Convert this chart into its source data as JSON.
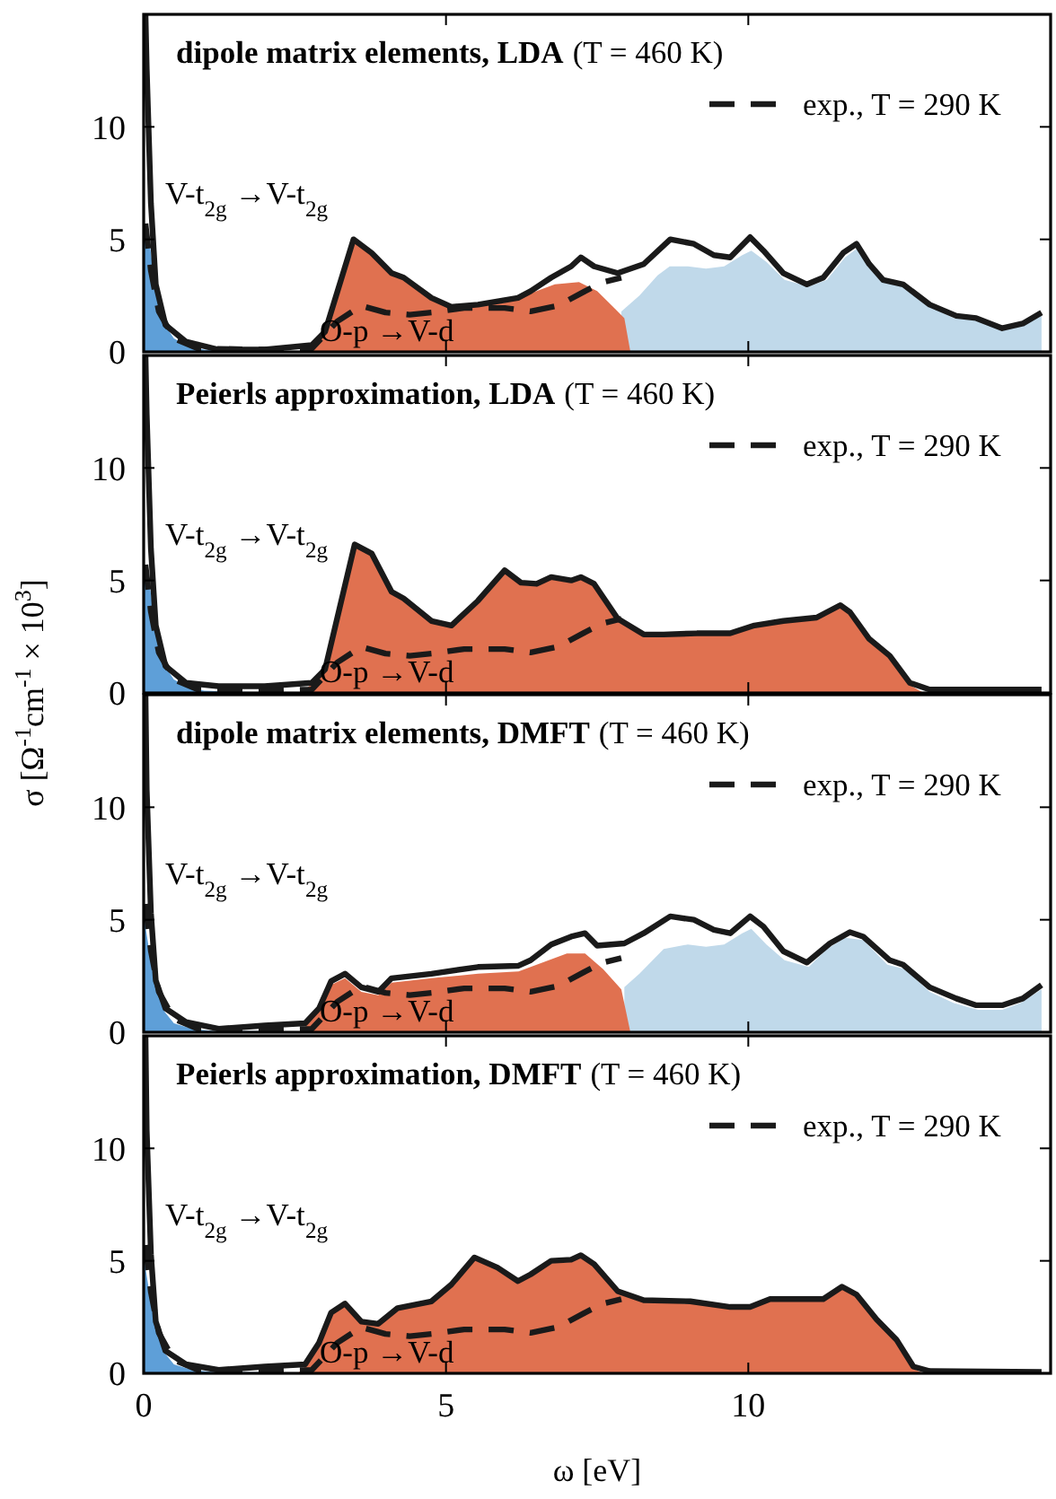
{
  "chart_data": [
    {
      "type": "area",
      "title": "dipole matrix elements, LDA",
      "subtitle": "(T = 460 K)",
      "xlim": [
        0,
        15
      ],
      "ylim": [
        0,
        15
      ],
      "xticks": [
        0,
        5,
        10
      ],
      "yticks": [
        0,
        5,
        10
      ],
      "tick_labels": "y",
      "legend": "top right",
      "grid": false,
      "series": [
        {
          "type": "area",
          "color": "#c0d9ea",
          "x": [
            7.9,
            8.2,
            8.5,
            8.7,
            9.0,
            9.3,
            9.6,
            9.9,
            10.05,
            10.3,
            10.6,
            11.0,
            11.3,
            11.6,
            11.8,
            12.0,
            12.3,
            12.6,
            13.0,
            13.4,
            13.8,
            14.2,
            14.5,
            14.85
          ],
          "values": [
            1.8,
            2.5,
            3.4,
            3.8,
            3.8,
            3.7,
            3.8,
            4.3,
            4.5,
            4.0,
            3.2,
            2.9,
            3.2,
            4.2,
            4.6,
            3.8,
            3.1,
            2.9,
            2.0,
            1.5,
            1.4,
            0.95,
            1.15,
            1.65
          ]
        },
        {
          "type": "area",
          "name": "V-t$_{2g}$ →V-t$_{2g}$",
          "color": "#5e9fd8",
          "x": [
            0,
            0.1,
            0.2,
            0.35,
            0.5,
            0.7,
            1.0,
            1.5,
            3,
            15
          ],
          "values": [
            5.2,
            4.8,
            2.8,
            1.2,
            0.6,
            0.3,
            0.1,
            0.05,
            0,
            0
          ]
        },
        {
          "type": "area",
          "name": "O-p →V-d",
          "color": "#e07150",
          "x": [
            2.7,
            2.9,
            3.1,
            3.47,
            3.77,
            4.1,
            4.3,
            4.76,
            5.09,
            5.5,
            6.0,
            6.4,
            6.8,
            7.2,
            7.5,
            7.8,
            7.95,
            8.05,
            15
          ],
          "values": [
            0,
            0.5,
            1.5,
            4.9,
            4.3,
            3.4,
            3.2,
            2.3,
            1.9,
            2.0,
            2.2,
            2.6,
            3.0,
            3.1,
            2.7,
            1.9,
            1.5,
            0,
            0
          ]
        },
        {
          "type": "line",
          "color": "#1a1a1a",
          "line_style": "solid",
          "x": [
            0.03,
            0.05,
            0.12,
            0.2,
            0.36,
            0.7,
            1.24,
            2.0,
            2.78,
            3.0,
            3.47,
            3.77,
            4.1,
            4.3,
            4.76,
            5.09,
            5.53,
            6.19,
            6.4,
            6.74,
            7.07,
            7.23,
            7.45,
            7.84,
            8.27,
            8.71,
            9.1,
            9.43,
            9.7,
            10.03,
            10.25,
            10.58,
            10.97,
            11.24,
            11.57,
            11.79,
            12.0,
            12.23,
            12.56,
            13.0,
            13.44,
            13.77,
            14.2,
            14.54,
            14.85
          ],
          "values": [
            15,
            12.6,
            6.6,
            3.0,
            1.2,
            0.45,
            0.1,
            0.1,
            0.3,
            0.9,
            5.0,
            4.4,
            3.5,
            3.3,
            2.4,
            2.0,
            2.1,
            2.4,
            2.7,
            3.3,
            3.8,
            4.2,
            3.8,
            3.5,
            3.9,
            5.0,
            4.8,
            4.3,
            4.2,
            5.1,
            4.5,
            3.5,
            3.0,
            3.3,
            4.4,
            4.8,
            3.9,
            3.2,
            3.0,
            2.1,
            1.6,
            1.5,
            1.05,
            1.26,
            1.75
          ]
        },
        {
          "type": "line",
          "name": "exp., T = 290 K",
          "color": "#1a1a1a",
          "line_style": "dashed",
          "x": [
            0.03,
            0.12,
            0.25,
            0.5,
            0.9,
            2.0,
            2.78,
            3.2,
            3.6,
            4.0,
            4.4,
            4.76,
            5.3,
            5.97,
            6.4,
            6.85,
            7.3,
            7.6,
            7.9
          ],
          "values": [
            5.7,
            3.6,
            1.8,
            0.6,
            0.15,
            0.1,
            0.15,
            1.35,
            2.05,
            1.75,
            1.65,
            1.75,
            1.95,
            1.95,
            1.8,
            2.05,
            2.7,
            3.1,
            3.3
          ]
        }
      ]
    },
    {
      "type": "area",
      "title": "Peierls approximation, LDA",
      "subtitle": "(T = 460 K)",
      "ylabel": "σ [Ω$^{-1}$cm$^{-1}$ × 10$^{3}$]",
      "xlim": [
        0,
        15
      ],
      "ylim": [
        0,
        15
      ],
      "xticks": [
        0,
        5,
        10
      ],
      "yticks": [
        0,
        5,
        10
      ],
      "tick_labels": "y",
      "legend": "top right",
      "grid": false,
      "series": [
        {
          "type": "area",
          "name": "V-t$_{2g}$ →V-t$_{2g}$",
          "color": "#5e9fd8",
          "x": [
            0,
            0.1,
            0.2,
            0.35,
            0.5,
            0.7,
            1.0,
            1.5,
            3,
            15
          ],
          "values": [
            5.2,
            4.8,
            2.8,
            1.2,
            0.6,
            0.3,
            0.1,
            0.05,
            0,
            0
          ]
        },
        {
          "type": "area",
          "name": "O-p →V-d",
          "color": "#e07150",
          "x": [
            2.6,
            2.78,
            3.0,
            3.49,
            3.77,
            4.1,
            4.3,
            4.76,
            5.09,
            5.53,
            5.97,
            6.24,
            6.5,
            6.74,
            7.07,
            7.23,
            7.45,
            7.84,
            8.27,
            8.6,
            9.15,
            9.7,
            10.1,
            10.58,
            11.13,
            11.52,
            11.68,
            12.0,
            12.34,
            12.67,
            12.9,
            15
          ],
          "values": [
            0,
            0.4,
            1.0,
            6.5,
            6.1,
            4.4,
            4.1,
            3.1,
            2.9,
            4.0,
            5.35,
            4.8,
            4.75,
            5.05,
            4.9,
            5.05,
            4.75,
            3.2,
            2.5,
            2.5,
            2.55,
            2.55,
            2.9,
            3.1,
            3.25,
            3.8,
            3.5,
            2.3,
            1.55,
            0.35,
            0,
            0
          ]
        },
        {
          "type": "line",
          "color": "#1a1a1a",
          "line_style": "solid",
          "x": [
            0.03,
            0.05,
            0.12,
            0.2,
            0.36,
            0.7,
            1.24,
            2.0,
            2.78,
            3.0,
            3.49,
            3.77,
            4.1,
            4.3,
            4.76,
            5.09,
            5.53,
            5.97,
            6.24,
            6.5,
            6.74,
            7.07,
            7.23,
            7.45,
            7.84,
            8.27,
            8.6,
            9.15,
            9.7,
            10.1,
            10.58,
            11.13,
            11.52,
            11.68,
            12.0,
            12.34,
            12.67,
            13.0,
            14.1,
            14.85
          ],
          "values": [
            15,
            12.4,
            6.4,
            3.0,
            1.2,
            0.45,
            0.3,
            0.3,
            0.45,
            1.05,
            6.6,
            6.2,
            4.5,
            4.2,
            3.2,
            3.0,
            4.1,
            5.45,
            4.9,
            4.85,
            5.15,
            5.0,
            5.15,
            4.85,
            3.3,
            2.6,
            2.6,
            2.65,
            2.65,
            3.0,
            3.2,
            3.35,
            3.9,
            3.6,
            2.4,
            1.65,
            0.45,
            0.15,
            0.15,
            0.15
          ]
        },
        {
          "type": "line",
          "name": "exp., T = 290 K",
          "color": "#1a1a1a",
          "line_style": "dashed",
          "x": [
            0.03,
            0.12,
            0.25,
            0.5,
            0.9,
            2.0,
            2.78,
            3.2,
            3.6,
            4.0,
            4.4,
            4.76,
            5.3,
            5.97,
            6.4,
            6.85,
            7.3,
            7.6,
            7.9
          ],
          "values": [
            5.7,
            3.6,
            1.8,
            0.6,
            0.15,
            0.1,
            0.15,
            1.35,
            2.05,
            1.75,
            1.65,
            1.75,
            1.95,
            1.95,
            1.8,
            2.05,
            2.7,
            3.1,
            3.3
          ]
        }
      ]
    },
    {
      "type": "area",
      "title": "dipole matrix elements, DMFT",
      "subtitle": "(T = 460 K)",
      "xlim": [
        0,
        15
      ],
      "ylim": [
        0,
        15
      ],
      "xticks": [
        0,
        5,
        10
      ],
      "yticks": [
        0,
        5,
        10
      ],
      "tick_labels": "y",
      "legend": "top right",
      "grid": false,
      "series": [
        {
          "type": "area",
          "color": "#c0d9ea",
          "x": [
            7.95,
            8.2,
            8.6,
            9.0,
            9.3,
            9.6,
            9.9,
            10.05,
            10.3,
            10.6,
            11.0,
            11.3,
            11.6,
            11.9,
            12.3,
            12.6,
            13.0,
            13.4,
            13.8,
            14.2,
            14.5,
            14.85
          ],
          "values": [
            2.0,
            2.6,
            3.7,
            3.9,
            3.8,
            3.9,
            4.4,
            4.6,
            3.9,
            3.2,
            2.9,
            3.7,
            4.2,
            4.1,
            3.0,
            2.8,
            1.8,
            1.3,
            1.0,
            1.0,
            1.3,
            1.9
          ]
        },
        {
          "type": "area",
          "name": "V-t$_{2g}$ →V-t$_{2g}$",
          "color": "#5e9fd8",
          "x": [
            0,
            0.1,
            0.2,
            0.35,
            0.5,
            0.8,
            1.2,
            2.0,
            2.7,
            15
          ],
          "values": [
            5.2,
            3.5,
            2.0,
            0.9,
            0.4,
            0.15,
            0.05,
            0.05,
            0,
            0
          ]
        },
        {
          "type": "area",
          "name": "O-p →V-d",
          "color": "#e07150",
          "x": [
            2.6,
            2.9,
            3.1,
            3.33,
            3.6,
            3.88,
            4.1,
            4.76,
            5.53,
            6.2,
            6.6,
            7.0,
            7.3,
            7.6,
            7.9,
            8.05,
            15
          ],
          "values": [
            0,
            1.0,
            2.1,
            2.4,
            1.8,
            1.65,
            2.2,
            2.4,
            2.6,
            2.7,
            3.1,
            3.5,
            3.5,
            2.8,
            1.9,
            0,
            0
          ]
        },
        {
          "type": "line",
          "color": "#1a1a1a",
          "line_style": "solid",
          "x": [
            0.03,
            0.05,
            0.12,
            0.2,
            0.36,
            0.7,
            1.24,
            2.0,
            2.67,
            2.9,
            3.1,
            3.33,
            3.6,
            3.88,
            4.1,
            4.76,
            5.53,
            6.19,
            6.4,
            6.74,
            7.07,
            7.3,
            7.5,
            7.95,
            8.27,
            8.71,
            9.1,
            9.43,
            9.7,
            10.03,
            10.25,
            10.58,
            10.97,
            11.35,
            11.68,
            11.9,
            12.34,
            12.56,
            13.0,
            13.44,
            13.77,
            14.2,
            14.54,
            14.85
          ],
          "values": [
            15,
            10.8,
            5.3,
            2.3,
            1.06,
            0.45,
            0.15,
            0.3,
            0.4,
            1.06,
            2.27,
            2.6,
            2.0,
            1.8,
            2.4,
            2.6,
            2.9,
            2.95,
            3.2,
            3.9,
            4.25,
            4.4,
            3.85,
            3.95,
            4.4,
            5.15,
            5.0,
            4.55,
            4.4,
            5.15,
            4.7,
            3.6,
            3.1,
            3.95,
            4.45,
            4.25,
            3.2,
            3.0,
            2.0,
            1.5,
            1.2,
            1.2,
            1.5,
            2.1
          ]
        },
        {
          "type": "line",
          "name": "exp., T = 290 K",
          "color": "#1a1a1a",
          "line_style": "dashed",
          "x": [
            0.03,
            0.12,
            0.25,
            0.5,
            0.9,
            2.0,
            2.78,
            3.2,
            3.6,
            4.0,
            4.4,
            4.76,
            5.3,
            5.97,
            6.4,
            6.85,
            7.3,
            7.6,
            7.9
          ],
          "values": [
            5.7,
            3.6,
            1.8,
            0.6,
            0.15,
            0.1,
            0.15,
            1.35,
            2.05,
            1.75,
            1.65,
            1.75,
            1.95,
            1.95,
            1.8,
            2.05,
            2.7,
            3.1,
            3.3
          ]
        }
      ]
    },
    {
      "type": "area",
      "title": "Peierls approximation, DMFT",
      "subtitle": "(T = 460 K)",
      "xlabel": "ω [eV]",
      "xlim": [
        0,
        15
      ],
      "ylim": [
        0,
        15
      ],
      "xticks": [
        0,
        5,
        10
      ],
      "yticks": [
        0,
        5,
        10
      ],
      "legend": "top right",
      "grid": false,
      "series": [
        {
          "type": "area",
          "name": "V-t$_{2g}$ →V-t$_{2g}$",
          "color": "#5e9fd8",
          "x": [
            0,
            0.1,
            0.2,
            0.35,
            0.5,
            0.8,
            1.2,
            2.0,
            2.7,
            15
          ],
          "values": [
            5.2,
            3.5,
            2.0,
            0.9,
            0.4,
            0.15,
            0.05,
            0.05,
            0,
            0
          ]
        },
        {
          "type": "area",
          "name": "O-p →V-d",
          "color": "#e07150",
          "x": [
            2.55,
            2.67,
            2.9,
            3.1,
            3.33,
            3.6,
            3.88,
            4.2,
            4.76,
            5.09,
            5.47,
            5.85,
            6.19,
            6.4,
            6.74,
            7.07,
            7.23,
            7.45,
            7.84,
            8.27,
            9.04,
            9.7,
            10.03,
            10.36,
            11.24,
            11.55,
            11.79,
            12.12,
            12.45,
            12.73,
            12.9,
            15
          ],
          "values": [
            0,
            0.3,
            1.25,
            2.6,
            3.0,
            2.2,
            2.1,
            2.8,
            3.1,
            3.85,
            5.05,
            4.6,
            4.0,
            4.3,
            4.9,
            4.95,
            5.15,
            4.75,
            3.55,
            3.15,
            3.1,
            2.85,
            2.85,
            3.2,
            3.2,
            3.75,
            3.4,
            2.3,
            1.4,
            0.2,
            0,
            0
          ]
        },
        {
          "type": "line",
          "color": "#1a1a1a",
          "line_style": "solid",
          "x": [
            0.03,
            0.05,
            0.12,
            0.2,
            0.36,
            0.7,
            1.24,
            2.0,
            2.67,
            2.9,
            3.1,
            3.33,
            3.6,
            3.88,
            4.2,
            4.76,
            5.09,
            5.47,
            5.85,
            6.19,
            6.4,
            6.74,
            7.07,
            7.23,
            7.45,
            7.84,
            8.27,
            9.04,
            9.7,
            10.03,
            10.36,
            11.24,
            11.55,
            11.79,
            12.12,
            12.45,
            12.73,
            13.0,
            14.85
          ],
          "values": [
            15,
            10.8,
            5.3,
            2.3,
            1.0,
            0.4,
            0.15,
            0.3,
            0.4,
            1.36,
            2.7,
            3.1,
            2.3,
            2.2,
            2.9,
            3.2,
            3.95,
            5.15,
            4.7,
            4.1,
            4.4,
            5.0,
            5.05,
            5.25,
            4.85,
            3.65,
            3.25,
            3.2,
            2.95,
            2.95,
            3.3,
            3.3,
            3.85,
            3.5,
            2.4,
            1.5,
            0.3,
            0.1,
            0.06
          ]
        },
        {
          "type": "line",
          "name": "exp., T = 290 K",
          "color": "#1a1a1a",
          "line_style": "dashed",
          "x": [
            0.03,
            0.12,
            0.25,
            0.5,
            0.9,
            2.0,
            2.78,
            3.2,
            3.6,
            4.0,
            4.4,
            4.76,
            5.3,
            5.97,
            6.4,
            6.85,
            7.3,
            7.6,
            7.9
          ],
          "values": [
            5.7,
            3.6,
            1.8,
            0.6,
            0.15,
            0.1,
            0.15,
            1.35,
            2.05,
            1.75,
            1.65,
            1.75,
            1.95,
            1.95,
            1.8,
            2.05,
            2.7,
            3.1,
            3.3
          ]
        }
      ]
    }
  ]
}
